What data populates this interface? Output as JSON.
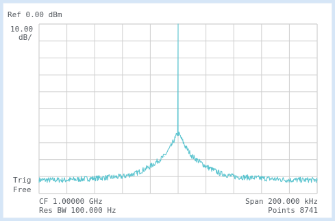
{
  "analyzer": {
    "ref_level": "Ref 0.00 dBm",
    "scale_value": "10.00",
    "scale_unit": "dB/",
    "trig_label": "Trig",
    "trig_mode": "Free",
    "center_freq": "CF 1.00000 GHz",
    "res_bw": "Res BW 100.000  Hz",
    "span": "Span  200.000 kHz",
    "points": "Points 8741"
  },
  "colors": {
    "trace": "#5bc4cf",
    "grid": "#cfcfcf",
    "text": "#555a60",
    "background": "#d6e6f7"
  },
  "chart_data": {
    "type": "line",
    "title": "",
    "xlabel": "",
    "ylabel": "",
    "x_unit": "kHz offset from CF",
    "xlim": [
      -100,
      100
    ],
    "ylim": [
      -100,
      0
    ],
    "grid": true,
    "series": [
      {
        "x": [
          -100,
          -80,
          -60,
          -40,
          -30,
          -20,
          -10,
          -5,
          -2,
          0,
          0,
          0,
          2,
          5,
          10,
          20,
          30,
          40,
          60,
          80,
          100
        ],
        "y": [
          -92,
          -92,
          -91,
          -90,
          -88,
          -84,
          -78,
          -72,
          -67,
          -64,
          0,
          -64,
          -67,
          -72,
          -78,
          -84,
          -88,
          -90,
          -91,
          -92,
          -92
        ]
      }
    ]
  }
}
